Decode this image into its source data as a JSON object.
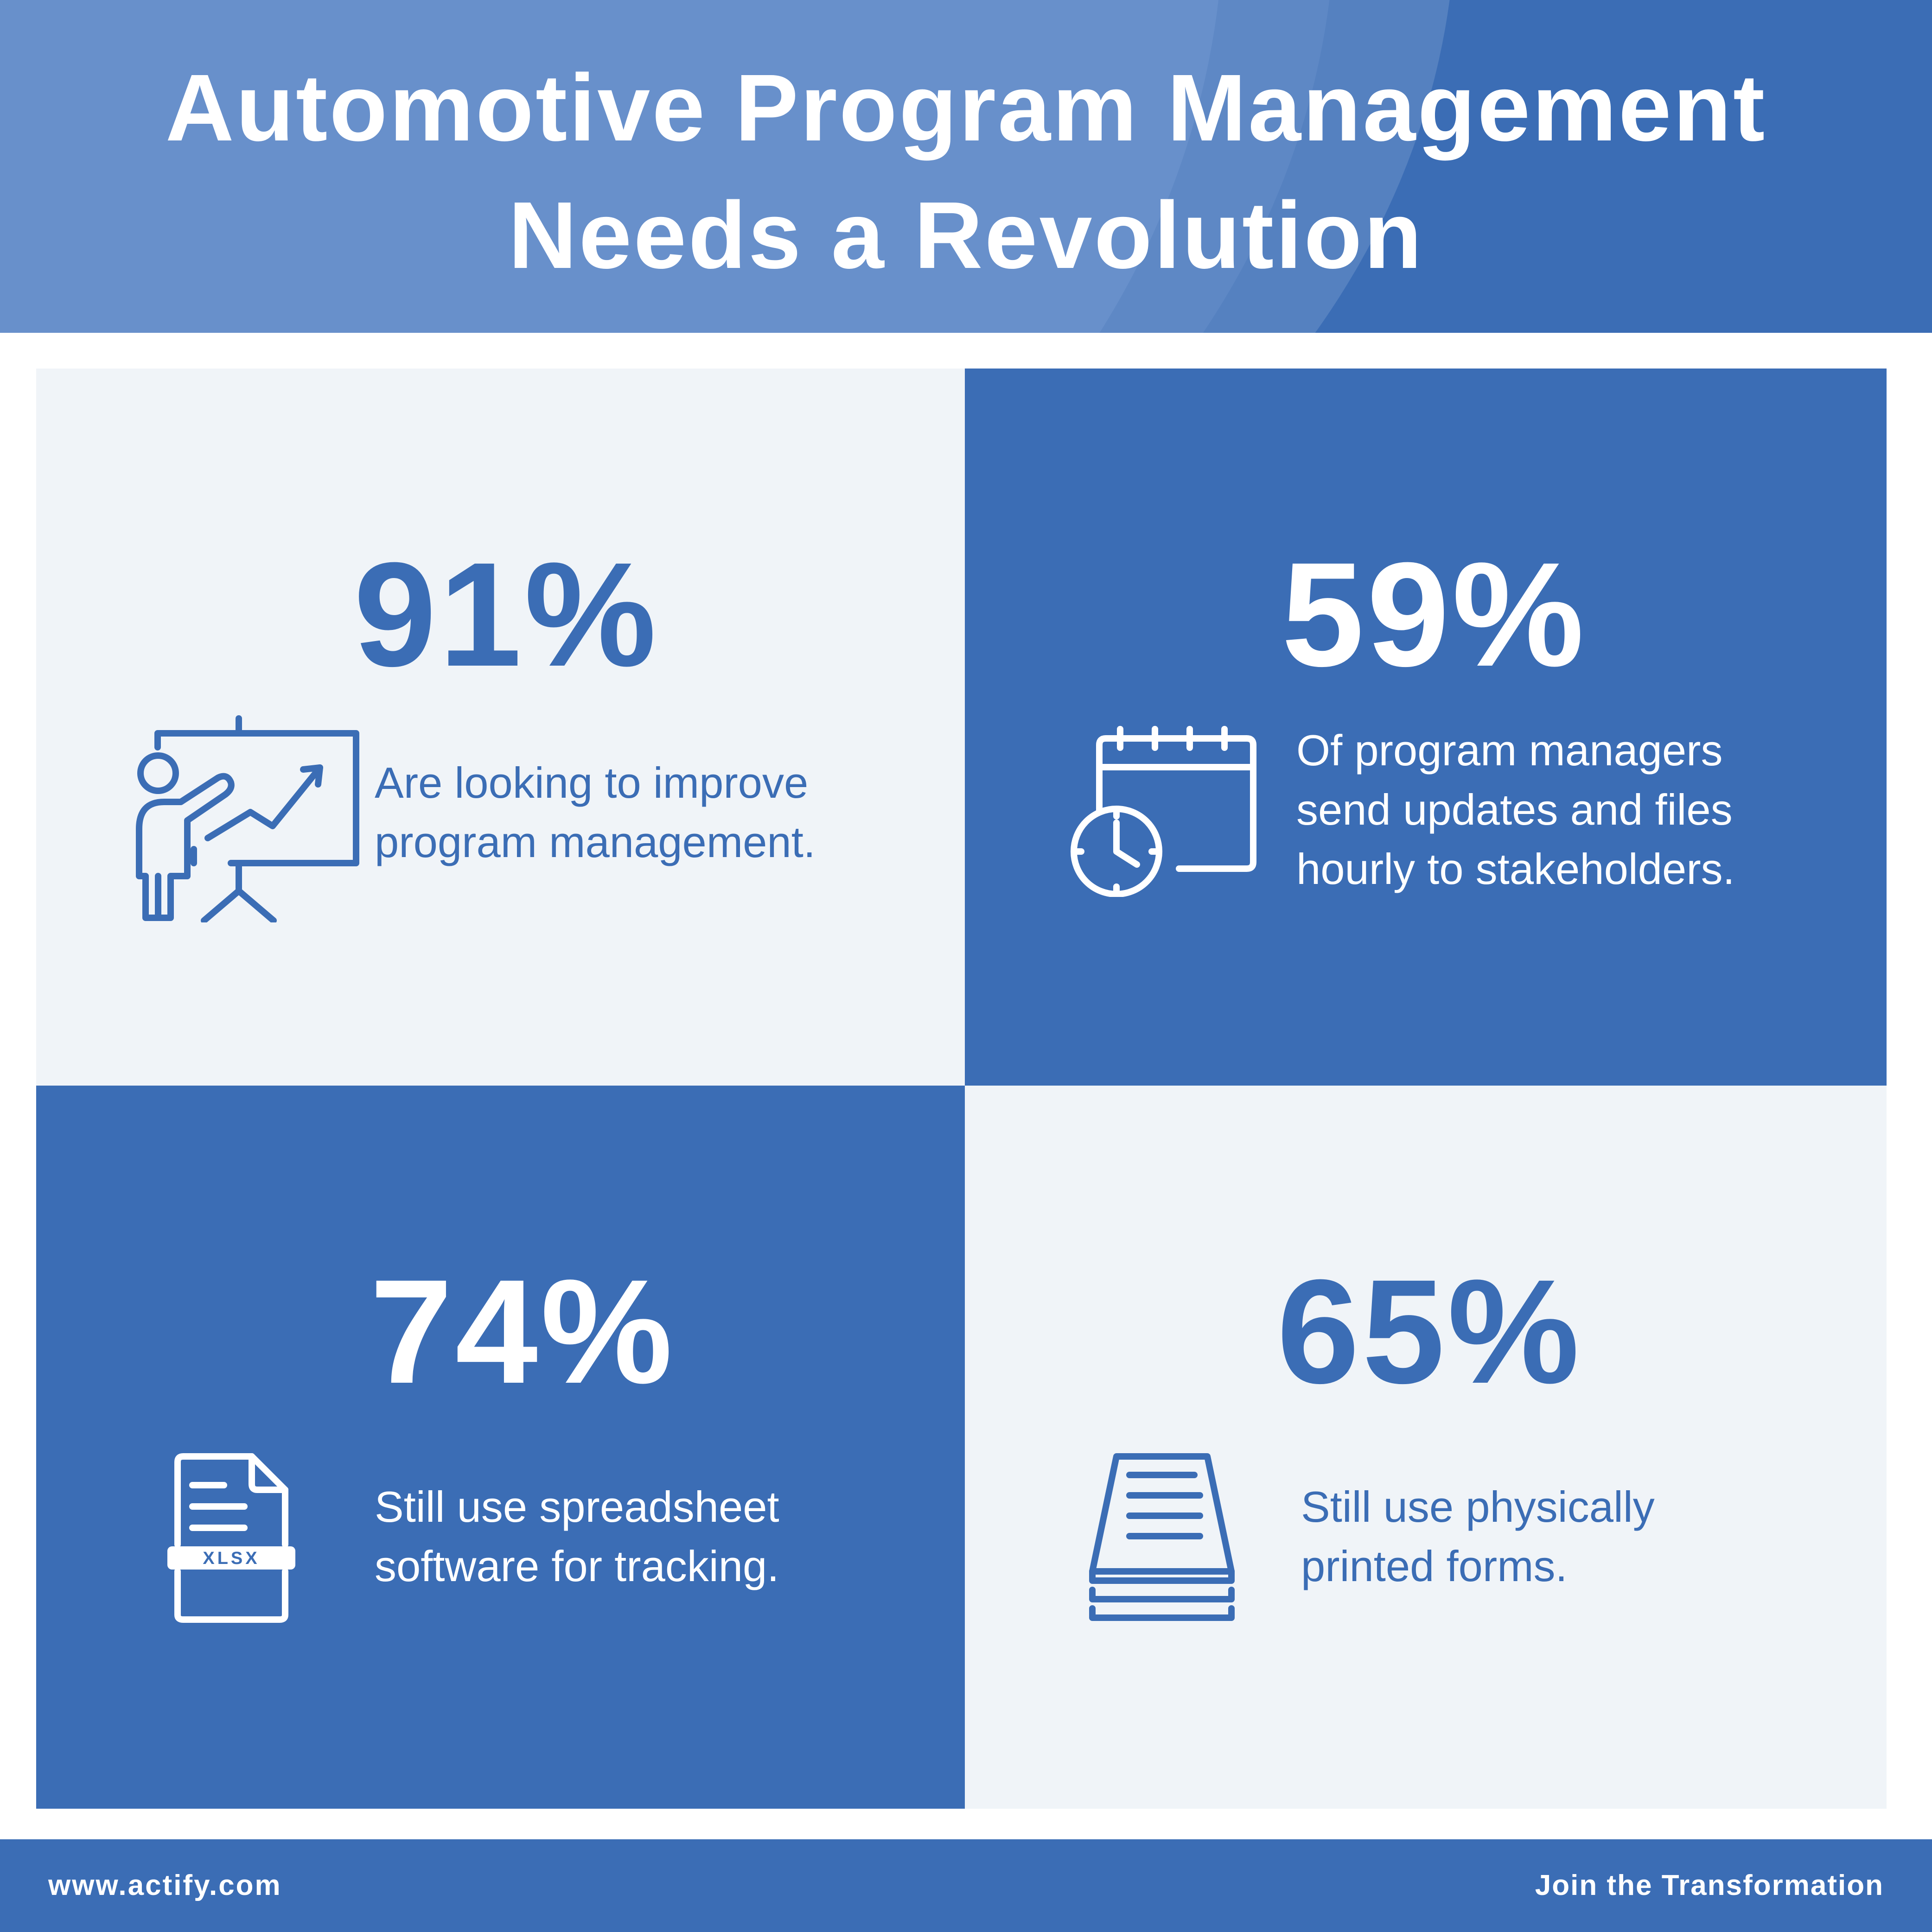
{
  "header": {
    "title_line1": "Automotive Program Management",
    "title_line2": "Needs a Revolution"
  },
  "stats": [
    {
      "value": "91%",
      "desc_line1": "Are looking to improve",
      "desc_line2": "program management.",
      "icon": "presenter-chart-icon"
    },
    {
      "value": "59%",
      "desc_line1": "Of program managers",
      "desc_line2": "send updates and files",
      "desc_line3": "hourly to stakeholders.",
      "icon": "calendar-clock-icon"
    },
    {
      "value": "74%",
      "desc_line1": "Still use spreadsheet",
      "desc_line2": "software for tracking.",
      "icon": "xlsx-file-icon",
      "icon_label": "XLSX"
    },
    {
      "value": "65%",
      "desc_line1": "Still use physically",
      "desc_line2": "printed forms.",
      "icon": "paper-stack-icon"
    }
  ],
  "footer": {
    "url": "www.actify.com",
    "cta": "Join the Transformation"
  },
  "colors": {
    "primary": "#3b6db5",
    "light_tile": "#f0f4f8",
    "text_light": "#ffffff"
  }
}
